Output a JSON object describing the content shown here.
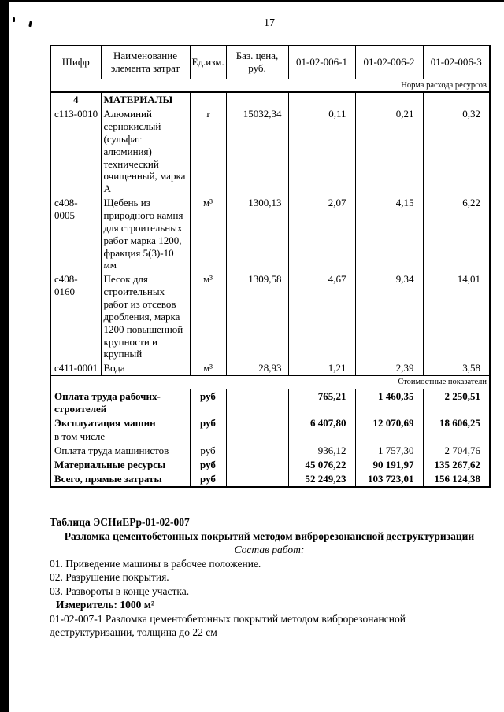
{
  "colors": {
    "ink": "#000000",
    "paper": "#ffffff"
  },
  "page": {
    "number": "17"
  },
  "table1": {
    "headers": [
      "Шифр",
      "Наименование элемента затрат",
      "Ед.изм.",
      "Баз. цена, руб.",
      "01-02-006-1",
      "01-02-006-2",
      "01-02-006-3"
    ],
    "section1_label": "Норма расхода ресурсов",
    "materials_header": {
      "code": "4",
      "name": "МАТЕРИАЛЫ"
    },
    "material_rows": [
      {
        "code": "с113-0010",
        "name": "Алюминий сернокислый (сульфат алюминия) технический очищенный, марка А",
        "unit": "т",
        "base_price": "15032,34",
        "v1": "0,11",
        "v2": "0,21",
        "v3": "0,32"
      },
      {
        "code": "с408-0005",
        "name": "Щебень из природного камня для строительных работ марка 1200, фракция 5(3)-10 мм",
        "unit": "м³",
        "base_price": "1300,13",
        "v1": "2,07",
        "v2": "4,15",
        "v3": "6,22"
      },
      {
        "code": "с408-0160",
        "name": "Песок для строительных работ из отсевов дробления, марка 1200 повышенной крупности и крупный",
        "unit": "м³",
        "base_price": "1309,58",
        "v1": "4,67",
        "v2": "9,34",
        "v3": "14,01"
      },
      {
        "code": "с411-0001",
        "name": "Вода",
        "unit": "м³",
        "base_price": "28,93",
        "v1": "1,21",
        "v2": "2,39",
        "v3": "3,58"
      }
    ],
    "section2_label": "Стоимостные показатели",
    "cost_rows": [
      {
        "name": "Оплата труда рабочих-строителей",
        "unit": "руб",
        "v1": "765,21",
        "v2": "1 460,35",
        "v3": "2 250,51"
      },
      {
        "name": "Эксплуатация машин",
        "unit": "руб",
        "v1": "6 407,80",
        "v2": "12 070,69",
        "v3": "18 606,25"
      },
      {
        "name": "в том числе",
        "unit": "",
        "v1": "",
        "v2": "",
        "v3": ""
      },
      {
        "name": "Оплата труда машинистов",
        "unit": "руб",
        "v1": "936,12",
        "v2": "1 757,30",
        "v3": "2 704,76"
      },
      {
        "name": "Материальные ресурсы",
        "unit": "руб",
        "v1": "45 076,22",
        "v2": "90 191,97",
        "v3": "135 267,62"
      },
      {
        "name": "Всего, прямые затраты",
        "unit": "руб",
        "v1": "52 249,23",
        "v2": "103 723,01",
        "v3": "156 124,38"
      }
    ]
  },
  "next_table": {
    "label": "Таблица ЭСНиЕРр-01-02-007",
    "title": "Разломка цементобетонных покрытий методом виброрезонансной деструктуризации",
    "works_label": "Состав работ:",
    "works": [
      "01. Приведение машины в рабочее положение.",
      "02. Разрушение покрытия.",
      "03. Развороты в конце участка."
    ],
    "meter_label": "Измеритель:",
    "meter_value": "1000 м²",
    "entry": "01-02-007-1 Разломка цементобетонных покрытий методом виброрезонансной деструктуризации, толщина до 22 см"
  }
}
